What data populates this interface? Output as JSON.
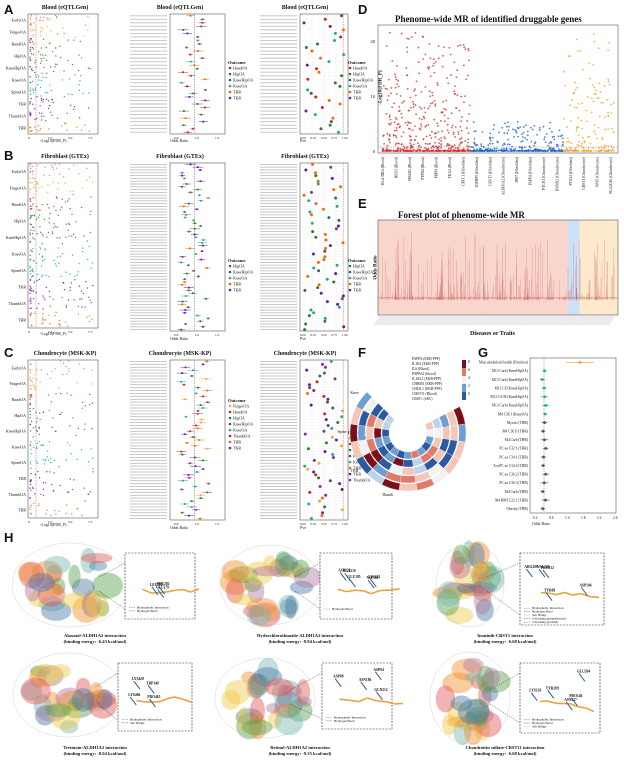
{
  "panels": {
    "A": {
      "label": "A",
      "titles": [
        "Blood (eQTLGen)",
        "Blood (eQTLGen)",
        "Blood (eQTLGen)"
      ],
      "xlabel_man": "-Log10(FDR_P)",
      "xlabel_forest": "Odds Ratio",
      "xlabel_pve": "Pve"
    },
    "B": {
      "label": "B",
      "titles": [
        "Fibroblast (GTEx)",
        "Fibroblast (GTEx)",
        "Fibroblast (GTEx)"
      ],
      "xlabel_man": "-Log10(FDR_P)",
      "xlabel_forest": "Odds Ratio",
      "xlabel_pve": "Pve"
    },
    "C": {
      "label": "C",
      "titles": [
        "Chondrocyte (MSK-KP)",
        "Chondrocyte (MSK-KP)",
        "Chondrocyte (MSK-KP)"
      ],
      "xlabel_man": "-Log10(FDR_P)",
      "xlabel_forest": "Odds Ratio",
      "xlabel_pve": "Pve"
    },
    "D": {
      "label": "D",
      "title": "Phenome-wide MR of identified druggable genes",
      "ylabel": "-Log10(FDR_P)"
    },
    "E": {
      "label": "E",
      "title": "Forest plot of phenome-wide MR",
      "ylabel": "Odds Ratio",
      "xlabel": "Diseases or Traits"
    },
    "F": {
      "label": "F"
    },
    "G": {
      "label": "G",
      "xlabel": "Odds Ratio"
    },
    "H": {
      "label": "H"
    }
  },
  "outcomes": [
    "EarlyOA",
    "FingerOA",
    "HandOA",
    "HipOA",
    "KneeHipOA",
    "KneeOA",
    "SpineOA",
    "TKR",
    "ThumbOA",
    "THR"
  ],
  "legend_title": "Outcome",
  "legend_A": [
    "HandOA",
    "HipOA",
    "KneeHipOA",
    "KneeOA",
    "THR",
    "TKR"
  ],
  "legend_B": [
    "HipOA",
    "KneeHipOA",
    "KneeOA",
    "THR",
    "TKR"
  ],
  "legend_C": [
    "FingerOA",
    "HandOA",
    "HipOA",
    "KneeHipOA",
    "KneeOA",
    "ThumbOA",
    "THR",
    "TKR"
  ],
  "legend_Cpve": [
    "FingerOA",
    "HandOA",
    "HipOA",
    "KneeHipOA",
    "KneeOA",
    "THR",
    "TKR",
    "ThumbOA"
  ],
  "ticks_man": [
    "0",
    "2.5",
    "5.0",
    "7.5"
  ],
  "ticks_or": [
    "0.8",
    "1.0",
    "1.2"
  ],
  "ticks_pve": [
    "0.00",
    "0.25",
    "0.50",
    "0.75",
    "1.00"
  ],
  "D_genes": [
    "HLA-DRA (Blood)",
    "NEU1 (Blood)",
    "SMAD3 (Blood)",
    "PTPN4 (Blood)",
    "PDPN (Blood)",
    "TKA2 (Blood)",
    "CRTC1 (Fibroblast)",
    "IGFBP5 (Fibroblast)",
    "CHST3 (Fibroblast)",
    "ALDH1A2 (Chondrocyte)",
    "IPO7 (Fibroblast)",
    "PAPPA (Fibroblast)",
    "PTCH1 (Chondrocyte)",
    "RUNX2 (Chondrocyte)",
    "PTGS2 (Fibroblast)",
    "CBST1 (Chondrocyte)",
    "WNT (Chondrocyte)",
    "PLA2G16 (Chondrocyte)"
  ],
  "D_yticks": [
    "0",
    "10",
    "20"
  ],
  "G_rows": [
    "Musculoskeletal health (FinnGen)",
    "M13 Carb (KneeHipOA)",
    "M13 Carb (KneeHipOA)",
    "M13 CP (KneeHipOA)",
    "M13 CS M (KneeHipOA)",
    "M13 Carb (KneeHipOA)",
    "M4 C36 I (KneeOA)",
    "Myosis (THR)",
    "M4 C36 II (THR)",
    "M4 Carb (THR)",
    "PC aa C32:1 (THR)",
    "PC aa C34:1 (THR)",
    "AcyPC ae C34:0 (THR)",
    "PC aa C36:2 (THR)",
    "PC aa C36:3 (THR)",
    "M4 Carb (THR)",
    "M4 BMI C22:1 (THR)",
    "Obesity (THR)"
  ],
  "G_ticks": [
    "0.2",
    "0.6",
    "1.4",
    "1.8",
    "2.2",
    "2.6"
  ],
  "F_genes": [
    "PAPPA (EKB-PPP)",
    "IL1R1 (EKB-PPP)",
    "IL6 (Blood)",
    "PAPPA2 (blood)",
    "IL1RL1 (EKB-PPP)",
    "CHRM1 (EKB-PPP)",
    "CHI3L1 (EKB-PPP)",
    "CHST11 (Blood)",
    "CBST1 (eBC)"
  ],
  "F_outer": [
    "Thumb",
    "TKR",
    "Spine",
    "Knee"
  ],
  "F_legend": [
    "8",
    "6",
    "4",
    "2",
    "0"
  ],
  "H_captions": [
    [
      "Alaxatol-ALDH1A2 interaction",
      "(binding energy: -6.43 kcal/mol)"
    ],
    [
      "Hydrochlorothiazide-ALDH1A2 interaction",
      "(binding energy: -9.94 kcal/mol)"
    ],
    [
      "Imatinib-CBST1 interaction",
      "(binding energy: -6.68 kcal/mol)"
    ],
    [
      "Tretinoin-ALDH1A2 interaction",
      "(binding energy: -8.04 kcal/mol)"
    ],
    [
      "Retinol-ALDH1A2 interaction",
      "(binding energy: -9.35 kcal/mol)"
    ],
    [
      "Chondroitin sulfate-CBST11 interaction",
      "(binding energy: -6.68 kcal/mol)"
    ]
  ],
  "H_legends": [
    [
      "Hydrophobic Interaction",
      "Hydrogen Bond"
    ],
    [
      "Hydrogen Bond"
    ],
    [
      "Hydrophobic Interaction",
      "Hydrogen Bond",
      "Salt Bridge",
      "π-Stacking (perpendicular)",
      "π-Stacking (parallel)"
    ],
    [
      "Hydrophobic Interaction",
      "Salt Bridge"
    ],
    [
      "Hydrophobic Interaction",
      "Hydrogen Bond"
    ],
    [
      "Hydrophobic Interaction",
      "Hydrogen Bond",
      "Salt Bridge"
    ]
  ],
  "H_residues": [
    [
      "PHE282",
      "GLU279",
      "LEU280"
    ],
    [
      "ASP122",
      "GLU195",
      "ASP169",
      "LYS152",
      "ALA210"
    ],
    [
      "PRO212",
      "ARG208",
      "VAL226",
      "TYR69",
      "ASP104"
    ],
    [
      "LYS466",
      "PRO465",
      "LYS428",
      "TRP148"
    ],
    [
      "ASP88",
      "ASN186",
      "GLN212",
      "ASP84"
    ],
    [
      "LYS126",
      "PRO146",
      "ASN137",
      "TYR209",
      "GLU204"
    ]
  ],
  "colors": {
    "EarlyOA": "#e07a5f",
    "FingerOA": "#f2a541",
    "HandOA": "#c62828",
    "HipOA": "#2e7d32",
    "KneeHipOA": "#555555",
    "KneeOA": "#26a69a",
    "SpineOA": "#00acc1",
    "TKR": "#6a1b9a",
    "ThumbOA": "#8e24aa",
    "THR": "#ef6c00",
    "D_red": "#d32f2f",
    "D_blue": "#1e63c5",
    "D_orange": "#f4a028"
  }
}
